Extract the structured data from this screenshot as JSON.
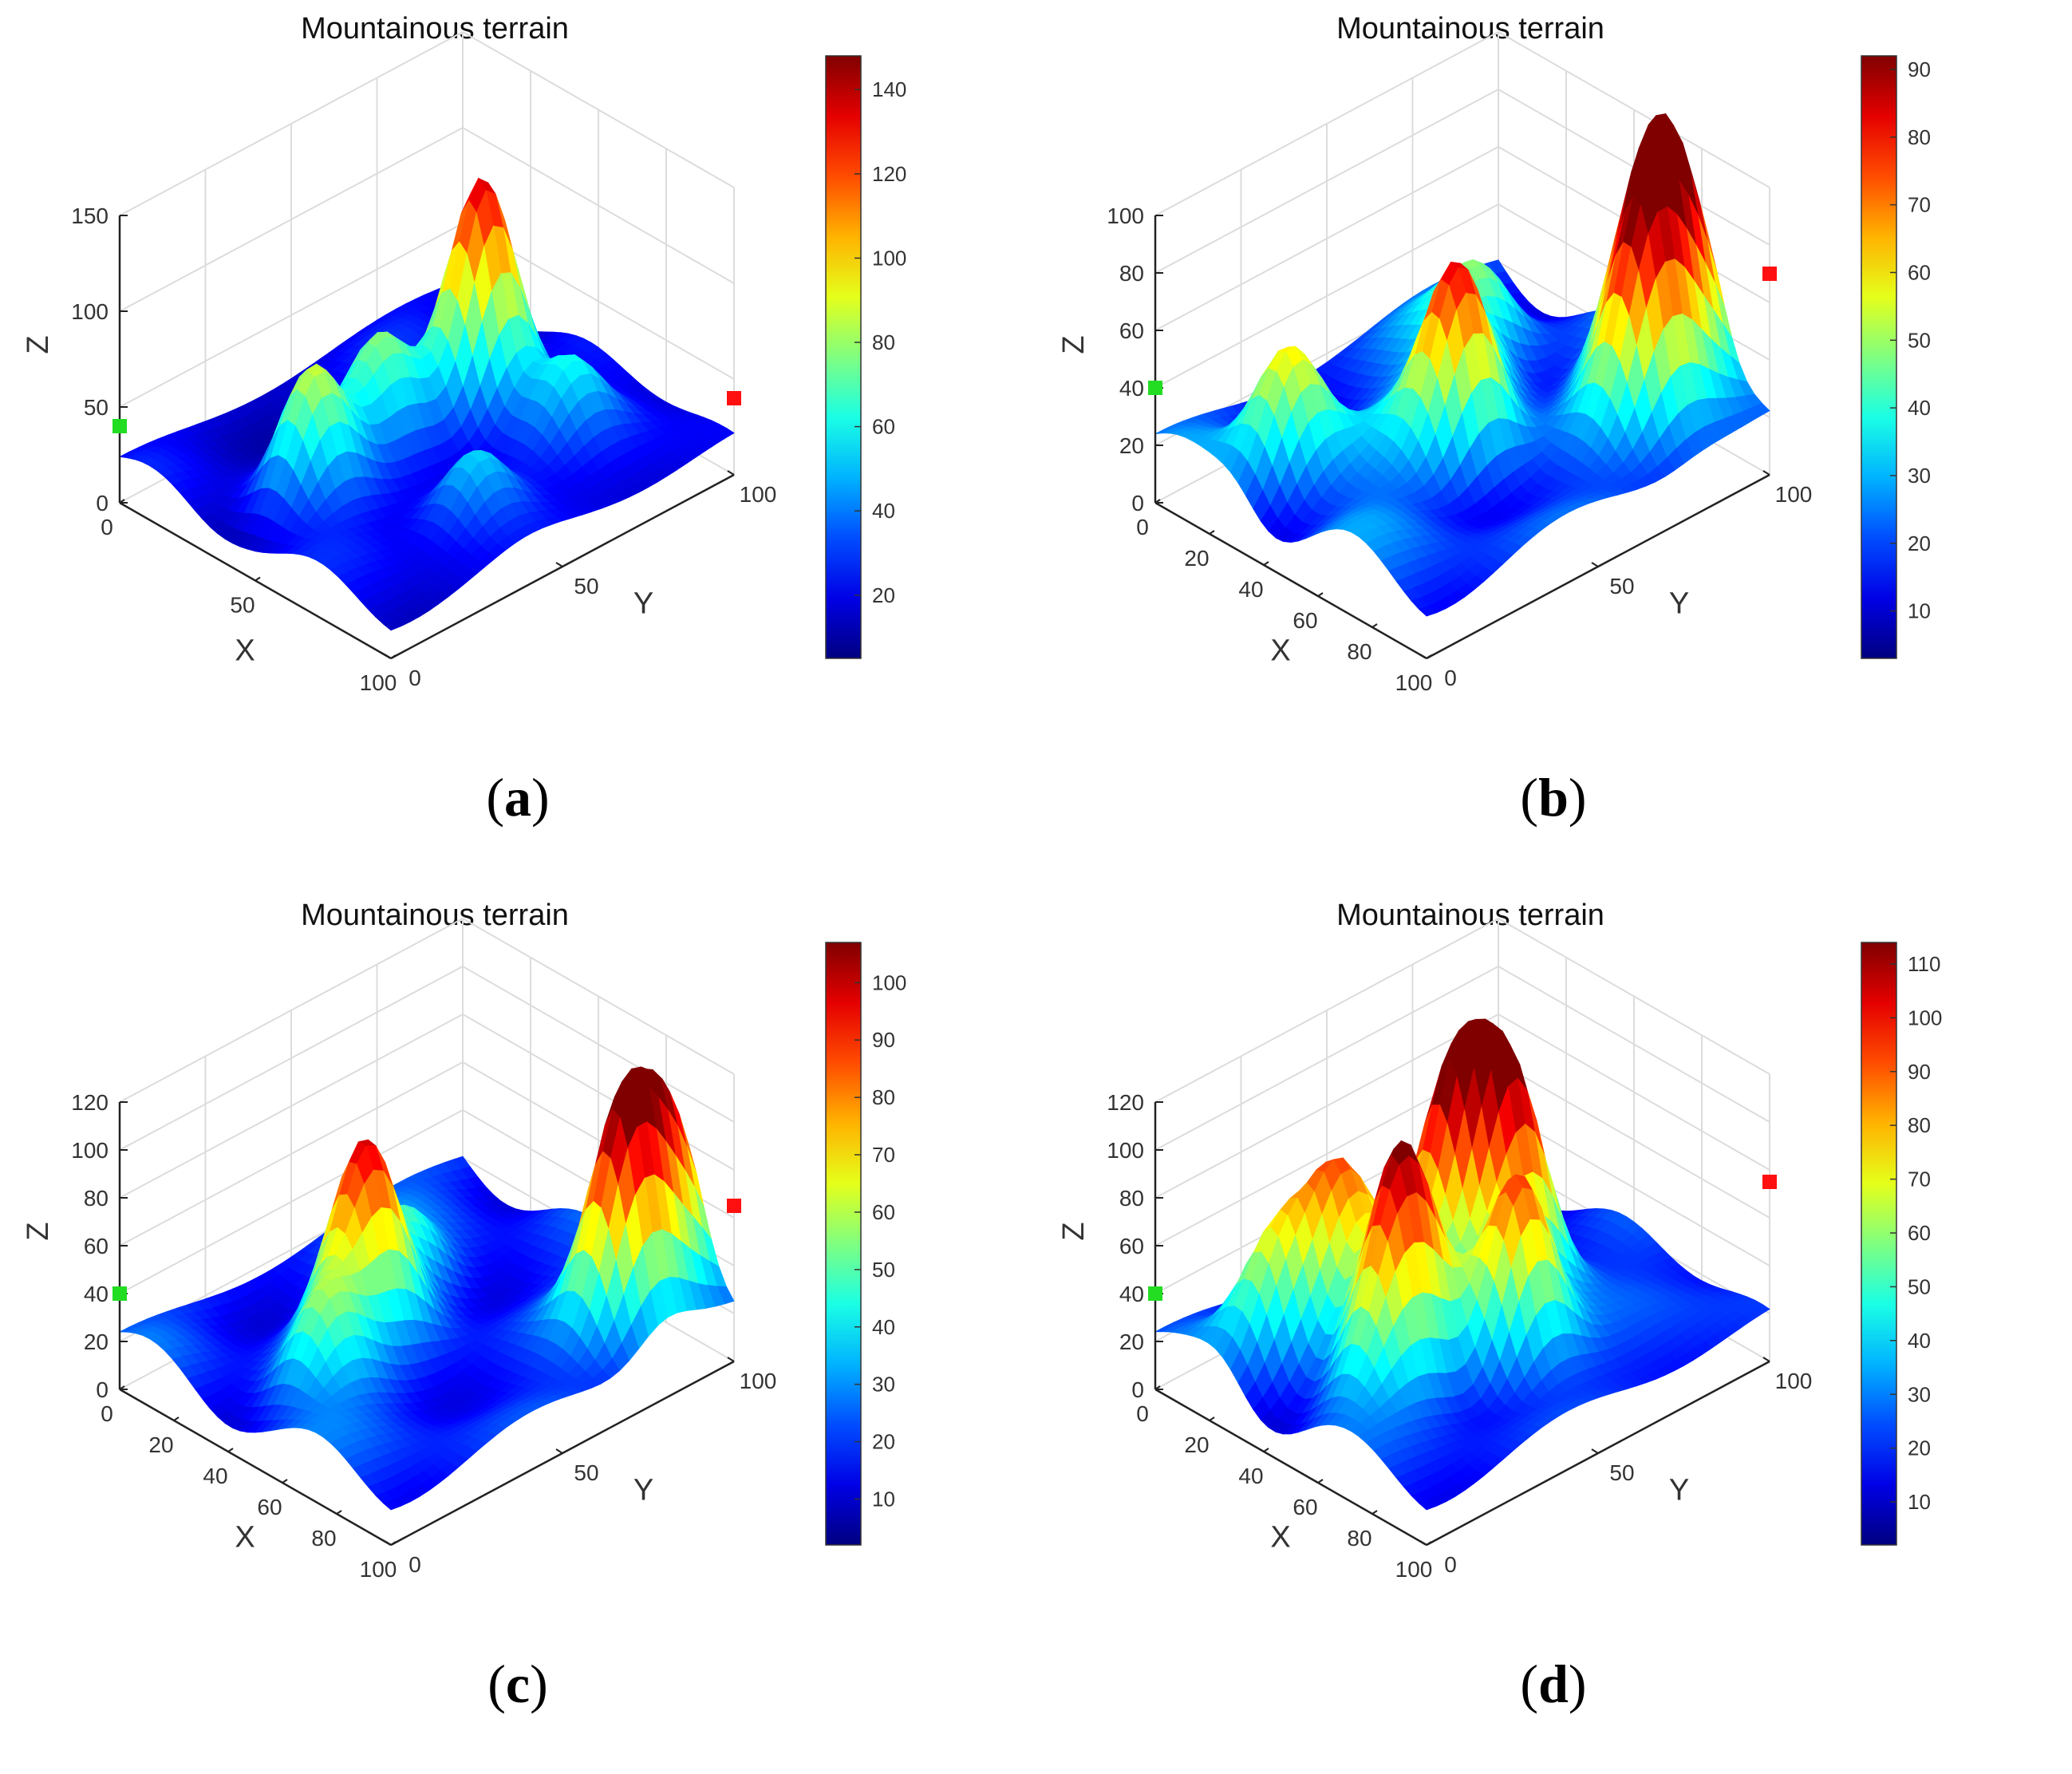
{
  "chart_data": [
    {
      "id": "a",
      "type": "surface3d",
      "title": "Mountainous terrain",
      "caption": "a",
      "xlabel": "X",
      "ylabel": "Y",
      "zlabel": "Z",
      "xticks": [
        "0",
        "50",
        "100"
      ],
      "yticks": [
        "0",
        "50",
        "100"
      ],
      "zticks": [
        "0",
        "50",
        "100",
        "150"
      ],
      "zlim": [
        0,
        150
      ],
      "colorbar": {
        "range": [
          5,
          148
        ],
        "ticks": [
          "20",
          "40",
          "60",
          "80",
          "100",
          "120",
          "140"
        ]
      },
      "start_point": {
        "x": 0,
        "y": 0,
        "z": 40,
        "color": "#22dd22"
      },
      "end_point": {
        "x": 100,
        "y": 100,
        "z": 40,
        "color": "#ff1010"
      },
      "base_level": 20,
      "peaks": [
        {
          "x": 45,
          "y": 70,
          "height": 148
        },
        {
          "x": 45,
          "y": 20,
          "height": 85
        },
        {
          "x": 40,
          "y": 45,
          "height": 70
        },
        {
          "x": 70,
          "y": 75,
          "height": 55
        },
        {
          "x": 80,
          "y": 40,
          "height": 60
        }
      ]
    },
    {
      "id": "b",
      "type": "surface3d",
      "title": "Mountainous terrain",
      "caption": "b",
      "xlabel": "X",
      "ylabel": "Y",
      "zlabel": "Z",
      "xticks": [
        "0",
        "20",
        "40",
        "60",
        "80",
        "100"
      ],
      "yticks": [
        "0",
        "50",
        "100"
      ],
      "zticks": [
        "0",
        "20",
        "40",
        "60",
        "80",
        "100"
      ],
      "zlim": [
        0,
        100
      ],
      "colorbar": {
        "range": [
          3,
          92
        ],
        "ticks": [
          "10",
          "20",
          "30",
          "40",
          "50",
          "60",
          "70",
          "80",
          "90"
        ]
      },
      "start_point": {
        "x": 0,
        "y": 0,
        "z": 40,
        "color": "#22dd22"
      },
      "end_point": {
        "x": 100,
        "y": 100,
        "z": 70,
        "color": "#ff1010"
      },
      "base_level": 20,
      "peaks": [
        {
          "x": 30,
          "y": 15,
          "height": 65
        },
        {
          "x": 25,
          "y": 75,
          "height": 45
        },
        {
          "x": 55,
          "y": 45,
          "height": 82
        },
        {
          "x": 65,
          "y": 90,
          "height": 70
        },
        {
          "x": 80,
          "y": 80,
          "height": 88
        },
        {
          "x": 75,
          "y": 95,
          "height": 75
        },
        {
          "x": 40,
          "y": 60,
          "height": 55
        }
      ]
    },
    {
      "id": "c",
      "type": "surface3d",
      "title": "Mountainous terrain",
      "caption": "c",
      "xlabel": "X",
      "ylabel": "Y",
      "zlabel": "Z",
      "xticks": [
        "0",
        "20",
        "40",
        "60",
        "80",
        "100"
      ],
      "yticks": [
        "0",
        "50",
        "100"
      ],
      "zticks": [
        "0",
        "20",
        "40",
        "60",
        "80",
        "100",
        "120"
      ],
      "zlim": [
        0,
        120
      ],
      "colorbar": {
        "range": [
          2,
          107
        ],
        "ticks": [
          "10",
          "20",
          "30",
          "40",
          "50",
          "60",
          "70",
          "80",
          "90",
          "100"
        ]
      },
      "start_point": {
        "x": 0,
        "y": 0,
        "z": 40,
        "color": "#22dd22"
      },
      "end_point": {
        "x": 100,
        "y": 100,
        "z": 65,
        "color": "#ff1010"
      },
      "base_level": 20,
      "peaks": [
        {
          "x": 40,
          "y": 40,
          "height": 90
        },
        {
          "x": 50,
          "y": 20,
          "height": 55
        },
        {
          "x": 30,
          "y": 60,
          "height": 45
        },
        {
          "x": 80,
          "y": 95,
          "height": 95
        },
        {
          "x": 85,
          "y": 80,
          "height": 105
        }
      ]
    },
    {
      "id": "d",
      "type": "surface3d",
      "title": "Mountainous terrain",
      "caption": "d",
      "xlabel": "X",
      "ylabel": "Y",
      "zlabel": "Z",
      "xticks": [
        "0",
        "20",
        "40",
        "60",
        "80",
        "100"
      ],
      "yticks": [
        "0",
        "50",
        "100"
      ],
      "zticks": [
        "0",
        "20",
        "40",
        "60",
        "80",
        "100",
        "120"
      ],
      "zlim": [
        0,
        120
      ],
      "colorbar": {
        "range": [
          2,
          114
        ],
        "ticks": [
          "10",
          "20",
          "30",
          "40",
          "50",
          "60",
          "70",
          "80",
          "90",
          "100",
          "110"
        ]
      },
      "start_point": {
        "x": 0,
        "y": 0,
        "z": 40,
        "color": "#22dd22"
      },
      "end_point": {
        "x": 100,
        "y": 100,
        "z": 75,
        "color": "#ff1010"
      },
      "base_level": 20,
      "peaks": [
        {
          "x": 40,
          "y": 55,
          "height": 110
        },
        {
          "x": 50,
          "y": 65,
          "height": 112
        },
        {
          "x": 55,
          "y": 30,
          "height": 95
        },
        {
          "x": 30,
          "y": 30,
          "height": 85
        },
        {
          "x": 70,
          "y": 50,
          "height": 100
        },
        {
          "x": 25,
          "y": 15,
          "height": 70
        },
        {
          "x": 60,
          "y": 20,
          "height": 60
        }
      ]
    }
  ]
}
